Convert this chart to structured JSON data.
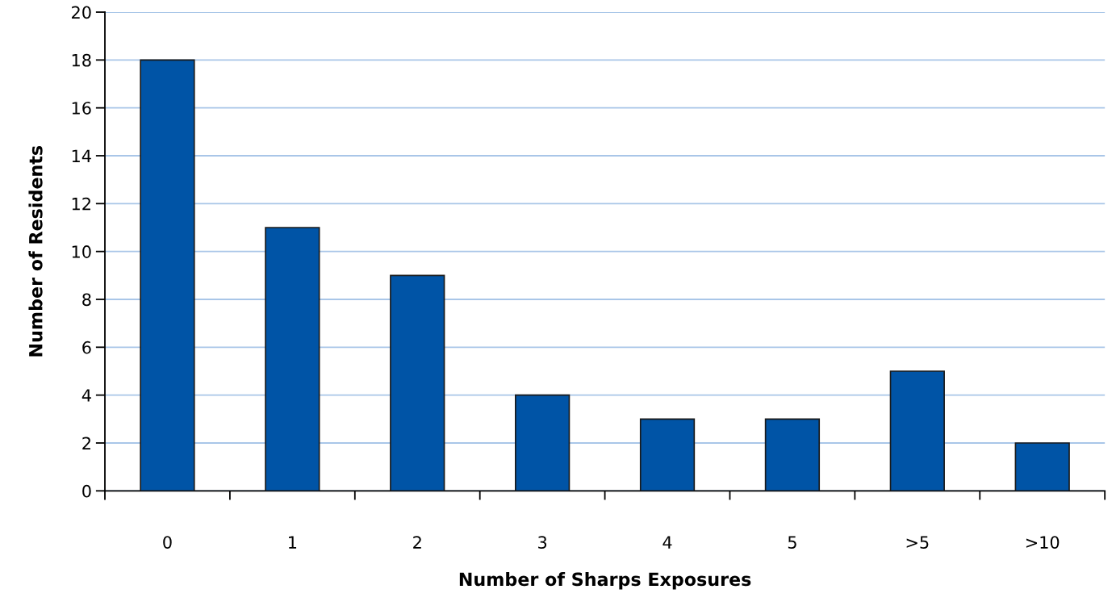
{
  "chart_data": {
    "type": "bar",
    "xlabel": "Number of Sharps Exposures",
    "ylabel": "Number of Residents",
    "categories": [
      "0",
      "1",
      "2",
      "3",
      "4",
      "5",
      ">5",
      ">10"
    ],
    "values": [
      18,
      11,
      9,
      4,
      3,
      3,
      5,
      2
    ],
    "color": "#0054a6",
    "ylim": [
      0,
      20
    ],
    "yticks": [
      0,
      2,
      4,
      6,
      8,
      10,
      12,
      14,
      16,
      18,
      20
    ],
    "grid": "y",
    "legend": false
  }
}
